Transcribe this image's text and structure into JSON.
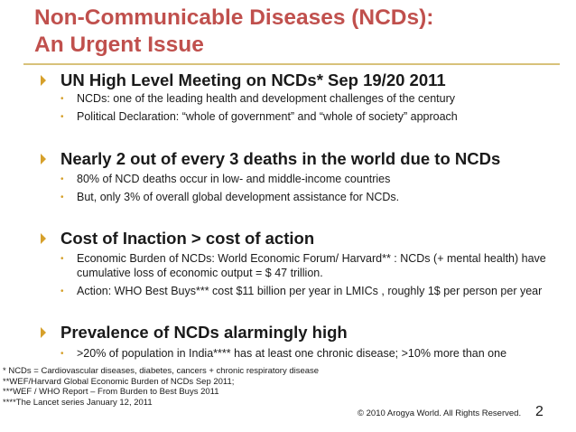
{
  "title": {
    "line1": "Non-Communicable Diseases (NCDs):",
    "line2": "An Urgent Issue"
  },
  "sections": [
    {
      "heading": "UN High Level Meeting on NCDs* Sep 19/20 2011",
      "bullets": [
        "NCDs: one of the leading health and development challenges of the century",
        "Political Declaration:  “whole of government” and “whole of society” approach"
      ]
    },
    {
      "heading": "Nearly 2 out of every 3 deaths in the world due to NCDs",
      "bullets": [
        "80% of NCD deaths occur in low- and middle-income countries",
        "But, only 3% of overall global development assistance for NCDs."
      ]
    },
    {
      "heading": "Cost of Inaction > cost of action",
      "bullets": [
        "Economic Burden of NCDs: World Economic Forum/ Harvard** :  NCDs (+ mental health) have cumulative loss of economic output  = $ 47 trillion.",
        "Action: WHO Best Buys*** cost $11 billion per year  in LMICs , roughly 1$ per person per year"
      ]
    },
    {
      "heading": "Prevalence of NCDs alarmingly high",
      "bullets": [
        ">20% of population in India**** has at least one chronic disease; >10% more than one"
      ]
    }
  ],
  "footnotes": [
    "* NCDs = Cardiovascular diseases, diabetes, cancers + chronic respiratory disease",
    "**WEF/Harvard Global Economic Burden of NCDs Sep 2011;",
    " ***WEF / WHO Report – From Burden to Best Buys  2011",
    "****The Lancet series January 12, 2011"
  ],
  "copyright": "© 2010 Arogya World. All Rights Reserved.",
  "page_number": "2",
  "colors": {
    "title": "#c0504d",
    "accent": "#d6a02b",
    "rule": "#d8c27a"
  }
}
